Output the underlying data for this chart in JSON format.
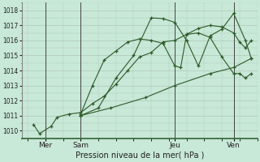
{
  "background_color": "#c8e8d8",
  "plot_bg": "#c8e8d8",
  "grid_color": "#b0c8b8",
  "line_color": "#2d5a27",
  "title": "Pression niveau de la mer( hPa )",
  "ylim": [
    1009.5,
    1018.5
  ],
  "yticks": [
    1010,
    1011,
    1012,
    1013,
    1014,
    1015,
    1016,
    1017,
    1018
  ],
  "xlim": [
    0,
    20
  ],
  "day_vlines": [
    2.0,
    5.0,
    13.0,
    18.0
  ],
  "day_labels": [
    [
      "Mer",
      2.0
    ],
    [
      "Sam",
      5.0
    ],
    [
      "Jeu",
      13.0
    ],
    [
      "Ven",
      18.0
    ]
  ],
  "series": [
    {
      "x": [
        1.0,
        1.5,
        2.5,
        3.0,
        4.0,
        5.0,
        6.0,
        7.0,
        8.0,
        9.0,
        10.0,
        11.0,
        12.0,
        13.0,
        14.0,
        15.0,
        16.0,
        17.0,
        18.0,
        18.5,
        19.0,
        19.5
      ],
      "y": [
        1010.4,
        1009.8,
        1010.3,
        1010.9,
        1011.1,
        1011.2,
        1011.8,
        1012.3,
        1013.1,
        1014.0,
        1014.9,
        1015.2,
        1015.9,
        1016.0,
        1016.4,
        1016.8,
        1017.0,
        1016.9,
        1016.5,
        1015.9,
        1015.5,
        1016.0
      ]
    },
    {
      "x": [
        5.0,
        6.0,
        7.0,
        8.0,
        9.0,
        10.0,
        11.0,
        12.0,
        13.0,
        13.5,
        14.0,
        15.0,
        16.0,
        17.0,
        18.0,
        18.5,
        19.0,
        19.5
      ],
      "y": [
        1011.1,
        1013.0,
        1014.7,
        1015.3,
        1015.9,
        1016.1,
        1016.0,
        1015.8,
        1014.3,
        1014.2,
        1016.4,
        1016.5,
        1016.2,
        1014.9,
        1013.8,
        1013.8,
        1013.5,
        1013.8
      ]
    },
    {
      "x": [
        5.0,
        6.5,
        8.0,
        9.5,
        11.0,
        12.0,
        13.0,
        14.0,
        15.0,
        16.0,
        17.0,
        18.0,
        19.0,
        19.5
      ],
      "y": [
        1011.0,
        1011.5,
        1013.5,
        1015.0,
        1017.5,
        1017.45,
        1017.2,
        1016.0,
        1014.3,
        1016.3,
        1016.75,
        1017.8,
        1016.0,
        1014.8
      ]
    },
    {
      "x": [
        5.0,
        7.5,
        10.5,
        13.0,
        16.0,
        18.0,
        19.5
      ],
      "y": [
        1011.0,
        1011.5,
        1012.2,
        1013.0,
        1013.8,
        1014.2,
        1014.8
      ]
    }
  ]
}
